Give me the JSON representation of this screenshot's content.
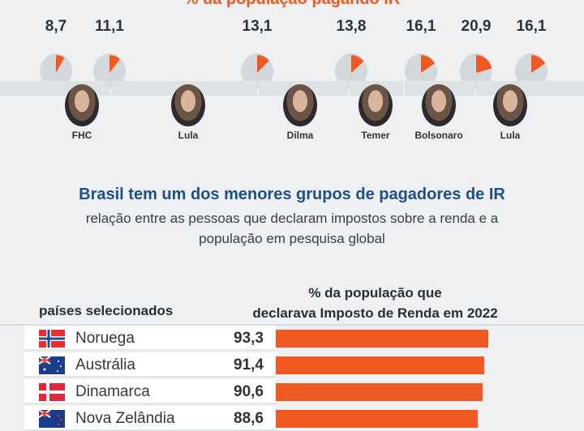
{
  "timeline": {
    "title": "% da população pagando IR"
  },
  "subtitle": {
    "title": "Brasil tem um dos menores grupos de pagadores de IR",
    "line1": "relação entre as pessoas que declaram impostos sobre a renda e a",
    "line2": "população em pesquisa global"
  },
  "table": {
    "col1": "países selecionados",
    "col2_line1": "% da população que",
    "col2_line2": "declarava Imposto de Renda em 2022"
  },
  "colors": {
    "accent": "#f05a22",
    "title": "#1f4e8c",
    "pie_bg": "#d3d9dd"
  },
  "chart_data": [
    {
      "type": "pie",
      "title": "% da população pagando IR",
      "labels": [
        "8,7",
        "11,1",
        "13,1",
        "13,8",
        "16,1",
        "20,9",
        "16,1"
      ],
      "values": [
        8.7,
        11.1,
        13.1,
        13.8,
        16.1,
        20.9,
        16.1
      ],
      "presidents": [
        "FHC",
        "Lula",
        "Dilma",
        "Temer",
        "Bolsonaro",
        "Lula"
      ]
    },
    {
      "type": "bar",
      "title": "% da população que declarava Imposto de Renda em 2022",
      "categories": [
        "Noruega",
        "Austrália",
        "Dinamarca",
        "Nova Zelândia"
      ],
      "labels": [
        "93,3",
        "91,4",
        "90,6",
        "88,6"
      ],
      "values": [
        93.3,
        91.4,
        90.6,
        88.6
      ],
      "flags": [
        "norway-flag",
        "australia-flag",
        "denmark-flag",
        "new-zealand-flag"
      ]
    }
  ]
}
